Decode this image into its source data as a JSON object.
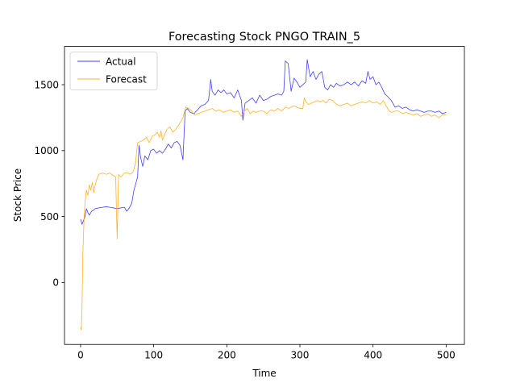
{
  "chart_data": {
    "type": "line",
    "title": "Forecasting Stock PNGO TRAIN_5",
    "xlabel": "Time",
    "ylabel": "Stock Price",
    "xlim": [
      -22,
      525
    ],
    "ylim": [
      -470,
      1790
    ],
    "xticks": [
      0,
      100,
      200,
      300,
      400,
      500
    ],
    "yticks": [
      0,
      500,
      1000,
      1500
    ],
    "grid": false,
    "legend_position": "upper-left",
    "series": [
      {
        "name": "Actual",
        "color": "#0000ff",
        "points": [
          [
            0,
            480
          ],
          [
            2,
            440
          ],
          [
            4,
            470
          ],
          [
            6,
            500
          ],
          [
            8,
            560
          ],
          [
            10,
            530
          ],
          [
            12,
            510
          ],
          [
            15,
            540
          ],
          [
            18,
            550
          ],
          [
            20,
            560
          ],
          [
            25,
            565
          ],
          [
            30,
            570
          ],
          [
            35,
            575
          ],
          [
            40,
            570
          ],
          [
            45,
            565
          ],
          [
            50,
            560
          ],
          [
            55,
            565
          ],
          [
            60,
            570
          ],
          [
            63,
            540
          ],
          [
            66,
            560
          ],
          [
            70,
            600
          ],
          [
            73,
            700
          ],
          [
            76,
            760
          ],
          [
            78,
            800
          ],
          [
            80,
            1040
          ],
          [
            82,
            950
          ],
          [
            85,
            880
          ],
          [
            88,
            960
          ],
          [
            92,
            930
          ],
          [
            96,
            1000
          ],
          [
            100,
            1010
          ],
          [
            104,
            980
          ],
          [
            108,
            1000
          ],
          [
            112,
            980
          ],
          [
            116,
            1010
          ],
          [
            120,
            1050
          ],
          [
            124,
            1020
          ],
          [
            128,
            1060
          ],
          [
            132,
            1070
          ],
          [
            136,
            1040
          ],
          [
            140,
            930
          ],
          [
            143,
            1300
          ],
          [
            146,
            1320
          ],
          [
            150,
            1290
          ],
          [
            155,
            1280
          ],
          [
            160,
            1310
          ],
          [
            165,
            1340
          ],
          [
            170,
            1350
          ],
          [
            175,
            1380
          ],
          [
            178,
            1540
          ],
          [
            180,
            1450
          ],
          [
            184,
            1420
          ],
          [
            188,
            1460
          ],
          [
            192,
            1440
          ],
          [
            196,
            1460
          ],
          [
            200,
            1430
          ],
          [
            205,
            1440
          ],
          [
            210,
            1400
          ],
          [
            215,
            1460
          ],
          [
            220,
            1380
          ],
          [
            222,
            1230
          ],
          [
            225,
            1360
          ],
          [
            230,
            1380
          ],
          [
            235,
            1400
          ],
          [
            240,
            1360
          ],
          [
            245,
            1420
          ],
          [
            250,
            1380
          ],
          [
            255,
            1390
          ],
          [
            260,
            1410
          ],
          [
            265,
            1420
          ],
          [
            270,
            1430
          ],
          [
            275,
            1420
          ],
          [
            278,
            1450
          ],
          [
            280,
            1680
          ],
          [
            284,
            1660
          ],
          [
            288,
            1450
          ],
          [
            292,
            1550
          ],
          [
            296,
            1520
          ],
          [
            300,
            1480
          ],
          [
            304,
            1500
          ],
          [
            308,
            1520
          ],
          [
            310,
            1690
          ],
          [
            314,
            1560
          ],
          [
            318,
            1600
          ],
          [
            322,
            1540
          ],
          [
            326,
            1580
          ],
          [
            330,
            1600
          ],
          [
            334,
            1480
          ],
          [
            338,
            1460
          ],
          [
            342,
            1500
          ],
          [
            346,
            1480
          ],
          [
            350,
            1510
          ],
          [
            355,
            1490
          ],
          [
            360,
            1500
          ],
          [
            365,
            1520
          ],
          [
            370,
            1500
          ],
          [
            375,
            1520
          ],
          [
            380,
            1490
          ],
          [
            385,
            1530
          ],
          [
            390,
            1510
          ],
          [
            393,
            1600
          ],
          [
            396,
            1540
          ],
          [
            400,
            1560
          ],
          [
            404,
            1500
          ],
          [
            408,
            1520
          ],
          [
            412,
            1480
          ],
          [
            416,
            1430
          ],
          [
            420,
            1410
          ],
          [
            425,
            1380
          ],
          [
            430,
            1330
          ],
          [
            435,
            1340
          ],
          [
            440,
            1320
          ],
          [
            445,
            1330
          ],
          [
            450,
            1310
          ],
          [
            455,
            1300
          ],
          [
            460,
            1310
          ],
          [
            465,
            1300
          ],
          [
            470,
            1290
          ],
          [
            475,
            1300
          ],
          [
            480,
            1300
          ],
          [
            485,
            1290
          ],
          [
            490,
            1300
          ],
          [
            495,
            1280
          ],
          [
            500,
            1290
          ]
        ]
      },
      {
        "name": "Forecast",
        "color": "#ffa500",
        "points": [
          [
            0,
            -340
          ],
          [
            1,
            -360
          ],
          [
            2,
            -180
          ],
          [
            3,
            200
          ],
          [
            4,
            360
          ],
          [
            5,
            520
          ],
          [
            6,
            600
          ],
          [
            8,
            700
          ],
          [
            10,
            660
          ],
          [
            12,
            740
          ],
          [
            14,
            700
          ],
          [
            16,
            760
          ],
          [
            18,
            680
          ],
          [
            20,
            740
          ],
          [
            22,
            780
          ],
          [
            25,
            820
          ],
          [
            30,
            830
          ],
          [
            35,
            820
          ],
          [
            40,
            830
          ],
          [
            45,
            810
          ],
          [
            48,
            800
          ],
          [
            50,
            330
          ],
          [
            52,
            820
          ],
          [
            55,
            800
          ],
          [
            60,
            830
          ],
          [
            65,
            830
          ],
          [
            68,
            820
          ],
          [
            72,
            840
          ],
          [
            75,
            900
          ],
          [
            78,
            1060
          ],
          [
            82,
            1070
          ],
          [
            86,
            1080
          ],
          [
            90,
            1100
          ],
          [
            94,
            1060
          ],
          [
            98,
            1110
          ],
          [
            102,
            1120
          ],
          [
            105,
            1140
          ],
          [
            108,
            1100
          ],
          [
            110,
            1150
          ],
          [
            112,
            1080
          ],
          [
            115,
            1120
          ],
          [
            118,
            1160
          ],
          [
            122,
            1180
          ],
          [
            126,
            1140
          ],
          [
            130,
            1160
          ],
          [
            135,
            1200
          ],
          [
            140,
            1250
          ],
          [
            144,
            1330
          ],
          [
            148,
            1320
          ],
          [
            152,
            1300
          ],
          [
            156,
            1270
          ],
          [
            160,
            1280
          ],
          [
            165,
            1290
          ],
          [
            170,
            1300
          ],
          [
            175,
            1310
          ],
          [
            180,
            1320
          ],
          [
            185,
            1300
          ],
          [
            190,
            1310
          ],
          [
            195,
            1290
          ],
          [
            200,
            1300
          ],
          [
            205,
            1310
          ],
          [
            210,
            1290
          ],
          [
            215,
            1300
          ],
          [
            220,
            1260
          ],
          [
            224,
            1300
          ],
          [
            228,
            1320
          ],
          [
            232,
            1280
          ],
          [
            236,
            1300
          ],
          [
            240,
            1290
          ],
          [
            245,
            1300
          ],
          [
            250,
            1300
          ],
          [
            255,
            1280
          ],
          [
            260,
            1310
          ],
          [
            265,
            1300
          ],
          [
            270,
            1320
          ],
          [
            275,
            1300
          ],
          [
            280,
            1330
          ],
          [
            285,
            1320
          ],
          [
            288,
            1330
          ],
          [
            292,
            1340
          ],
          [
            296,
            1330
          ],
          [
            300,
            1320
          ],
          [
            304,
            1320
          ],
          [
            306,
            1400
          ],
          [
            308,
            1370
          ],
          [
            312,
            1350
          ],
          [
            316,
            1360
          ],
          [
            320,
            1370
          ],
          [
            324,
            1380
          ],
          [
            328,
            1370
          ],
          [
            332,
            1380
          ],
          [
            336,
            1360
          ],
          [
            340,
            1390
          ],
          [
            345,
            1380
          ],
          [
            350,
            1350
          ],
          [
            355,
            1340
          ],
          [
            360,
            1350
          ],
          [
            365,
            1360
          ],
          [
            370,
            1340
          ],
          [
            375,
            1350
          ],
          [
            380,
            1360
          ],
          [
            385,
            1370
          ],
          [
            390,
            1360
          ],
          [
            395,
            1380
          ],
          [
            400,
            1360
          ],
          [
            405,
            1370
          ],
          [
            410,
            1350
          ],
          [
            414,
            1380
          ],
          [
            418,
            1340
          ],
          [
            422,
            1300
          ],
          [
            426,
            1290
          ],
          [
            430,
            1300
          ],
          [
            435,
            1300
          ],
          [
            440,
            1280
          ],
          [
            445,
            1290
          ],
          [
            450,
            1280
          ],
          [
            455,
            1270
          ],
          [
            460,
            1280
          ],
          [
            465,
            1260
          ],
          [
            470,
            1270
          ],
          [
            475,
            1280
          ],
          [
            480,
            1260
          ],
          [
            485,
            1270
          ],
          [
            490,
            1250
          ],
          [
            495,
            1270
          ],
          [
            500,
            1270
          ]
        ]
      }
    ]
  }
}
